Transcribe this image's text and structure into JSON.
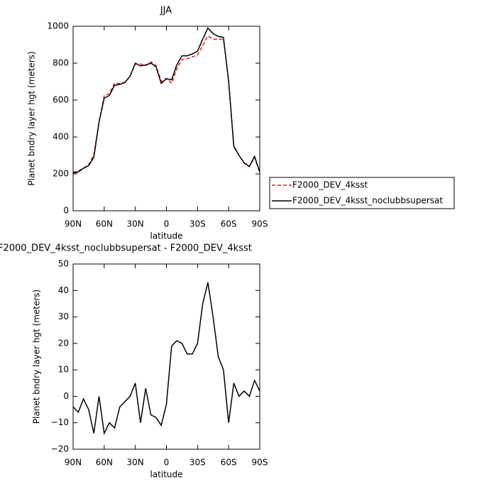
{
  "chart_data": [
    {
      "type": "line",
      "title": "JJA",
      "ylabel": "Planet bndry layer hgt (meters)",
      "xlabel": "latitude",
      "x": [
        90,
        85,
        80,
        75,
        70,
        65,
        60,
        55,
        50,
        45,
        40,
        35,
        30,
        25,
        20,
        15,
        10,
        5,
        0,
        -5,
        -10,
        -15,
        -20,
        -25,
        -30,
        -35,
        -40,
        -45,
        -50,
        -55,
        -60,
        -65,
        -70,
        -75,
        -80,
        -85,
        -90
      ],
      "series": [
        {
          "name": "F2000_DEV_4ksst",
          "color": "#e41a1c",
          "line_style": "dashed",
          "values": [
            209,
            216,
            231,
            250,
            304,
            480,
            624,
            635,
            692,
            689,
            697,
            730,
            795,
            795,
            787,
            807,
            788,
            701,
            718,
            691,
            769,
            820,
            824,
            834,
            845,
            895,
            947,
            930,
            930,
            930,
            710,
            345,
            300,
            258,
            240,
            289,
            208
          ]
        },
        {
          "name": "F2000_DEV_4ksst_noclubbsupersat",
          "color": "#000000",
          "line_style": "solid",
          "values": [
            205,
            210,
            230,
            245,
            290,
            480,
            610,
            625,
            680,
            685,
            695,
            730,
            800,
            785,
            790,
            800,
            780,
            690,
            715,
            710,
            790,
            840,
            840,
            850,
            865,
            930,
            990,
            960,
            945,
            940,
            700,
            350,
            300,
            260,
            240,
            295,
            210
          ]
        }
      ],
      "xlim": [
        90,
        -90
      ],
      "xticks": [
        {
          "value": 90,
          "label": "90N"
        },
        {
          "value": 60,
          "label": "60N"
        },
        {
          "value": 30,
          "label": "30N"
        },
        0,
        {
          "value": -30,
          "label": "30S"
        },
        {
          "value": -60,
          "label": "60S"
        },
        {
          "value": -90,
          "label": "90S"
        }
      ],
      "ylim": [
        0,
        1000
      ],
      "yticks": [
        0,
        200,
        400,
        600,
        800,
        1000
      ],
      "grid": false,
      "legend": "right"
    },
    {
      "type": "line",
      "title": "F2000_DEV_4ksst_noclubbsupersat - F2000_DEV_4ksst",
      "ylabel": "Planet bndry layer hgt (meters)",
      "xlabel": "latitude",
      "x": [
        90,
        85,
        80,
        75,
        70,
        65,
        60,
        55,
        50,
        45,
        40,
        35,
        30,
        25,
        20,
        15,
        10,
        5,
        0,
        -5,
        -10,
        -15,
        -20,
        -25,
        -30,
        -35,
        -40,
        -45,
        -50,
        -55,
        -60,
        -65,
        -70,
        -75,
        -80,
        -85,
        -90
      ],
      "series": [
        {
          "color": "#000000",
          "line_style": "solid",
          "values": [
            -4,
            -6,
            -1,
            -5,
            -14,
            0,
            -14,
            -10,
            -12,
            -4,
            -2,
            0,
            5,
            -10,
            3,
            -7,
            -8,
            -11,
            -3,
            19,
            21,
            20,
            16,
            16,
            20,
            35,
            43,
            30,
            15,
            10,
            -10,
            5,
            0,
            2,
            0,
            6,
            2
          ]
        }
      ],
      "xlim": [
        90,
        -90
      ],
      "xticks": [
        {
          "value": 90,
          "label": "90N"
        },
        {
          "value": 60,
          "label": "60N"
        },
        {
          "value": 30,
          "label": "30N"
        },
        0,
        {
          "value": -30,
          "label": "30S"
        },
        {
          "value": -60,
          "label": "60S"
        },
        {
          "value": -90,
          "label": "90S"
        }
      ],
      "ylim": [
        -20,
        50
      ],
      "yticks": [
        {
          "value": -20,
          "label": "−20"
        },
        {
          "value": -10,
          "label": "−10"
        },
        0,
        10,
        20,
        30,
        40,
        50
      ],
      "grid": false
    }
  ]
}
